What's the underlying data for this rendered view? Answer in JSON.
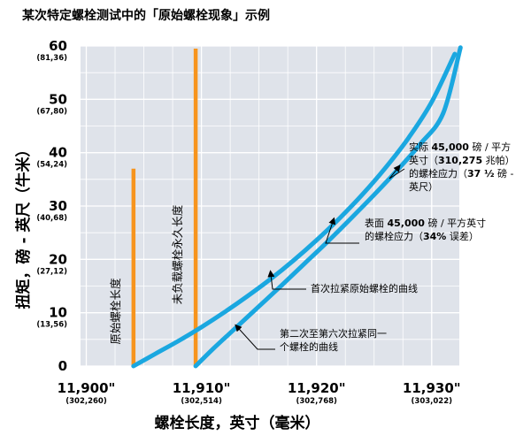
{
  "chart_data": {
    "type": "line",
    "title": "某次特定螺栓测试中的「原始螺栓现象」示例",
    "xlabel": "螺栓长度，英寸（毫米）",
    "ylabel": "扭矩，磅 - 英尺（牛米）",
    "xlim": [
      11.8995,
      11.9324
    ],
    "ylim": [
      0,
      60
    ],
    "grid": true,
    "y_ticks": [
      {
        "value": 0,
        "label": "0",
        "sub": ""
      },
      {
        "value": 10,
        "label": "10",
        "sub": "(13,56)"
      },
      {
        "value": 20,
        "label": "20",
        "sub": "(27,12)"
      },
      {
        "value": 30,
        "label": "30",
        "sub": "(40,68)"
      },
      {
        "value": 40,
        "label": "40",
        "sub": "(54,24)"
      },
      {
        "value": 50,
        "label": "50",
        "sub": "(67,80)"
      },
      {
        "value": 60,
        "label": "60",
        "sub": "(81,36)"
      }
    ],
    "x_ticks": [
      {
        "value": 11.9,
        "label": "11,900\"",
        "sub": "(302,260)"
      },
      {
        "value": 11.91,
        "label": "11,910\"",
        "sub": "(302,514)"
      },
      {
        "value": 11.92,
        "label": "11,920\"",
        "sub": "(302,768)"
      },
      {
        "value": 11.93,
        "label": "11,930\"",
        "sub": "(303,022)"
      }
    ],
    "series": [
      {
        "name": "首次拉紧原始螺栓的曲线",
        "color": "#1aa7e0",
        "x": [
          11.9041,
          11.906,
          11.908,
          11.91,
          11.912,
          11.914,
          11.916,
          11.918,
          11.92,
          11.922,
          11.924,
          11.926,
          11.928,
          11.93,
          11.932
        ],
        "y": [
          0,
          2.3,
          4.7,
          7.3,
          10.1,
          13.1,
          16.3,
          19.8,
          23.6,
          27.7,
          32.2,
          37.2,
          42.8,
          49.5,
          58.5
        ]
      },
      {
        "name": "第二次至第六次拉紧同一个螺栓的曲线",
        "color": "#1aa7e0",
        "x": [
          11.9095,
          11.911,
          11.913,
          11.915,
          11.917,
          11.919,
          11.921,
          11.923,
          11.925,
          11.927,
          11.929,
          11.931,
          11.9325
        ],
        "y": [
          0,
          3.2,
          7.2,
          11.2,
          15.2,
          19.3,
          23.4,
          27.7,
          32.1,
          36.7,
          41.6,
          47.4,
          59.7
        ]
      }
    ],
    "vertical_markers": [
      {
        "label": "原始螺栓长度",
        "x": 11.9041,
        "y_top": 37,
        "color": "#f7941d"
      },
      {
        "label": "未负载螺栓永久长度",
        "x": 11.9095,
        "y_top": 59.5,
        "color": "#f7941d"
      }
    ],
    "annotations": [
      {
        "lines": [
          "实际 45,000 磅 / 平方",
          "英寸（310,275 兆帕）",
          "的螺栓应力（37 ½ 磅 -",
          "英尺）"
        ],
        "bold": [
          "45,000",
          "310,275",
          "37 ½"
        ],
        "target": [
          11.9272,
          37.5
        ]
      },
      {
        "lines": [
          "表面 45,000 磅 / 平方英寸",
          "的螺栓应力（34% 误差）"
        ],
        "bold": [
          "45,000",
          "34%"
        ],
        "target": [
          11.9215,
          27.6
        ]
      },
      {
        "lines": [
          "首次拉紧原始螺栓的曲线"
        ],
        "bold": [],
        "target": [
          11.916,
          17.7
        ]
      },
      {
        "lines": [
          "第二次至第六次拉紧同一",
          "个螺栓的曲线"
        ],
        "bold": [],
        "target": [
          11.913,
          7.6
        ]
      }
    ]
  },
  "colors": {
    "plot_bg": "#dfe3ea",
    "grid": "#ffffff",
    "curve": "#1aa7e0",
    "marker": "#f7941d",
    "text": "#231f20"
  }
}
